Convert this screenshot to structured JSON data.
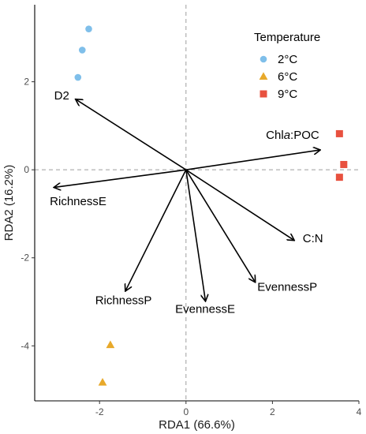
{
  "chart_data": {
    "type": "scatter",
    "xlabel": "RDA1 (66.6%)",
    "ylabel": "RDA2 (16.2%)",
    "xlim": [
      -3.5,
      4.0
    ],
    "ylim": [
      -5.25,
      3.75
    ],
    "x_ticks": [
      -2,
      0,
      2,
      4
    ],
    "y_ticks": [
      -4,
      -2,
      0,
      2
    ],
    "x_tick_labels": [
      "-2",
      "0",
      "2",
      "4"
    ],
    "y_tick_labels": [
      "-4",
      "-2",
      "0",
      "2"
    ],
    "zero_lines": "dashed",
    "grid": false,
    "legend": {
      "title": "Temperature",
      "placement": "top-right",
      "entries": [
        {
          "label": "2°C",
          "shape": "circle",
          "color": "#7fbfea"
        },
        {
          "label": "6°C",
          "shape": "triangle",
          "color": "#e8a92a"
        },
        {
          "label": "9°C",
          "shape": "square",
          "color": "#e8513f"
        }
      ]
    },
    "series": [
      {
        "name": "2°C",
        "shape": "circle",
        "color": "#7fbfea",
        "points": [
          [
            -2.25,
            3.2
          ],
          [
            -2.4,
            2.72
          ],
          [
            -2.5,
            2.1
          ]
        ]
      },
      {
        "name": "6°C",
        "shape": "triangle",
        "color": "#e8a92a",
        "points": [
          [
            -1.75,
            -3.98
          ],
          [
            -1.93,
            -4.83
          ]
        ]
      },
      {
        "name": "9°C",
        "shape": "square",
        "color": "#e8513f",
        "points": [
          [
            3.55,
            0.82
          ],
          [
            3.65,
            0.12
          ],
          [
            3.55,
            -0.17
          ]
        ]
      }
    ],
    "vectors": [
      {
        "label": "D2",
        "x": -2.55,
        "y": 1.6,
        "label_x": -3.05,
        "label_y": 1.6
      },
      {
        "label": "Chla:POC",
        "label_parts": [
          "Chl",
          "a",
          ":POC"
        ],
        "x": 3.1,
        "y": 0.45,
        "label_x": 1.85,
        "label_y": 0.7
      },
      {
        "label": "RichnessE",
        "x": -3.05,
        "y": -0.4,
        "label_x": -3.15,
        "label_y": -0.8
      },
      {
        "label": "C:N",
        "x": 2.5,
        "y": -1.6,
        "label_x": 2.7,
        "label_y": -1.65
      },
      {
        "label": "EvennessP",
        "x": 1.6,
        "y": -2.55,
        "label_x": 1.65,
        "label_y": -2.75
      },
      {
        "label": "EvennessE",
        "x": 0.45,
        "y": -2.98,
        "label_x": -0.25,
        "label_y": -3.25
      },
      {
        "label": "RichnessP",
        "x": -1.4,
        "y": -2.75,
        "label_x": -2.1,
        "label_y": -3.05
      }
    ],
    "axis_color": "#000000",
    "vector_color": "#000000",
    "zero_line_color": "#9e9e9e"
  }
}
